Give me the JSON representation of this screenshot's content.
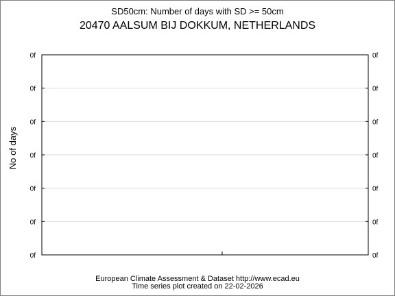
{
  "header": {
    "subtitle": "SD50cm: Number of days with SD >= 50cm",
    "title": "20470 AALSUM BIJ DOKKUM, NETHERLANDS"
  },
  "footer": {
    "source": "European Climate Assessment & Dataset  http://www.ecad.eu",
    "created": "Time series plot created on 22-02-2026"
  },
  "chart_data": {
    "type": "line",
    "title": "SD50cm: Number of days with SD >= 50cm",
    "subtitle": "20470 AALSUM BIJ DOKKUM, NETHERLANDS",
    "xlabel": "",
    "ylabel": "No of days",
    "y_tick_labels": [
      "0f",
      "0f",
      "0f",
      "0f",
      "0f",
      "0f",
      "0f"
    ],
    "x_tick_labels": [],
    "series": [],
    "grid": true,
    "colors": {
      "axis": "#000000",
      "grid": "#d9d9d9",
      "border": "#7f7f7f"
    }
  }
}
